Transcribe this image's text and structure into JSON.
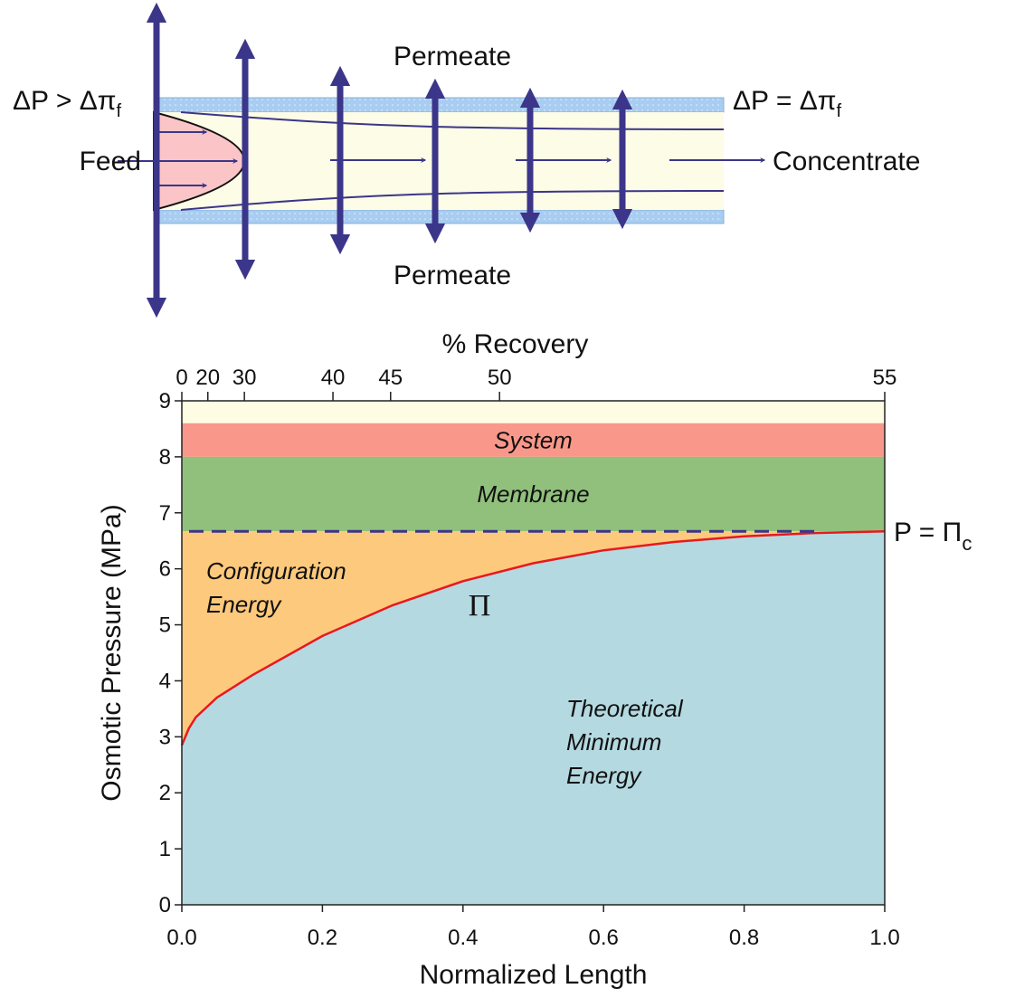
{
  "diagram": {
    "permeate_top": "Permeate",
    "permeate_bottom": "Permeate",
    "inlet_condition": {
      "main": "ΔP > Δπ",
      "sub": "f"
    },
    "outlet_condition": {
      "main": "ΔP = Δπ",
      "sub": "f"
    },
    "feed": "Feed",
    "concentrate": "Concentrate"
  },
  "chart_data": {
    "type": "area",
    "x_label": "Normalized Length",
    "y_label": "Osmotic Pressure (MPa)",
    "x2_label": "% Recovery",
    "x": [
      0,
      0.01,
      0.02,
      0.05,
      0.1,
      0.15,
      0.2,
      0.3,
      0.4,
      0.5,
      0.6,
      0.7,
      0.8,
      0.9,
      1.0
    ],
    "series": [
      {
        "name": "Π",
        "color": "#e8191e",
        "fill": "#b4d9e1",
        "values": [
          2.85,
          3.15,
          3.35,
          3.7,
          4.1,
          4.45,
          4.8,
          5.35,
          5.78,
          6.1,
          6.33,
          6.48,
          6.58,
          6.64,
          6.67
        ]
      }
    ],
    "xlim": [
      0,
      1
    ],
    "ylim": [
      0,
      9
    ],
    "xticks": [
      {
        "value": 0,
        "label": "0.0"
      },
      0.2,
      0.4,
      0.6,
      0.8,
      {
        "value": 1,
        "label": "1.0"
      }
    ],
    "yticks": [
      0,
      1,
      2,
      3,
      4,
      5,
      6,
      7,
      8,
      9
    ],
    "x2ticks": [
      {
        "value": 0,
        "label": "0"
      },
      {
        "value": 0.037,
        "label": "20"
      },
      {
        "value": 0.089,
        "label": "30"
      },
      {
        "value": 0.215,
        "label": "40"
      },
      {
        "value": 0.297,
        "label": "45"
      },
      {
        "value": 0.452,
        "label": "50"
      },
      {
        "value": 1,
        "label": "55"
      }
    ],
    "plot_background": "#fefde3",
    "bands": [
      {
        "name": "System",
        "from": 8,
        "to": 8.6,
        "color": "#f9988a"
      },
      {
        "name": "Membrane",
        "from": 6.67,
        "to": 8,
        "color": "#90c07c"
      }
    ],
    "limit": {
      "value": 6.67,
      "color": "#3b3689",
      "fill": "#fdc97c",
      "label": {
        "main": "P = Π",
        "sub": "c"
      }
    },
    "annotations": [
      {
        "lines": [
          "Configuration",
          "Energy"
        ]
      },
      {
        "lines": [
          "Theoretical",
          "Minimum",
          "Energy"
        ]
      }
    ]
  }
}
